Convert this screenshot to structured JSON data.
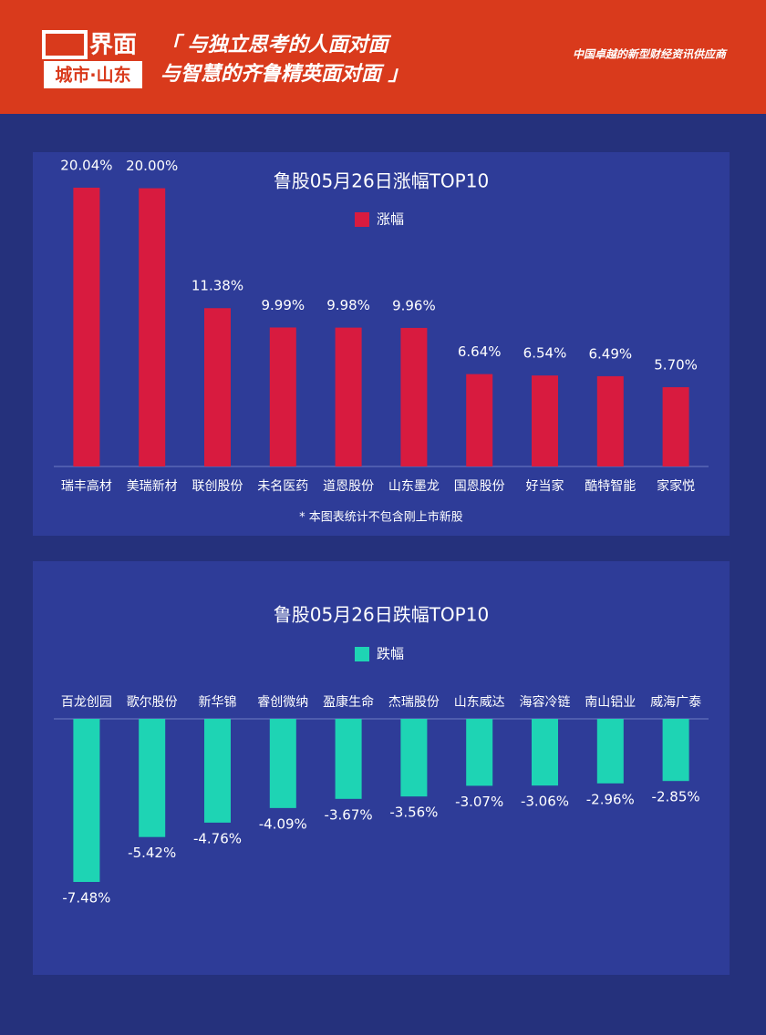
{
  "header": {
    "logo": "界面",
    "city": "城市·山东",
    "slogan_1": "「 与独立思考的人面对面",
    "slogan_2": "与智慧的齐鲁精英面对面 」",
    "tagline": "中国卓越的新型财经资讯供应商"
  },
  "chart_data": [
    {
      "type": "bar",
      "title": "鲁股05月26日涨幅TOP10",
      "note": "* 本图表统计不包含刚上市新股",
      "categories": [
        "瑞丰高材",
        "美瑞新材",
        "联创股份",
        "未名医药",
        "道恩股份",
        "山东墨龙",
        "国恩股份",
        "好当家",
        "酷特智能",
        "家家悦"
      ],
      "series": [
        {
          "name": "涨幅",
          "color": "#d81b3f",
          "values": [
            20.04,
            20.0,
            11.38,
            9.99,
            9.98,
            9.96,
            6.64,
            6.54,
            6.49,
            5.7
          ],
          "value_labels": [
            "20.04%",
            "20.00%",
            "11.38%",
            "9.99%",
            "9.98%",
            "9.96%",
            "6.64%",
            "6.54%",
            "6.49%",
            "5.70%"
          ]
        }
      ]
    },
    {
      "type": "bar",
      "title": "鲁股05月26日跌幅TOP10",
      "categories": [
        "百龙创园",
        "歌尔股份",
        "新华锦",
        "睿创微纳",
        "盈康生命",
        "杰瑞股份",
        "山东威达",
        "海容冷链",
        "南山铝业",
        "威海广泰"
      ],
      "series": [
        {
          "name": "跌幅",
          "color": "#1ed4b4",
          "values": [
            -7.48,
            -5.42,
            -4.76,
            -4.09,
            -3.67,
            -3.56,
            -3.07,
            -3.06,
            -2.96,
            -2.85
          ],
          "value_labels": [
            "-7.48%",
            "-5.42%",
            "-4.76%",
            "-4.09%",
            "-3.67%",
            "-3.56%",
            "-3.07%",
            "-3.06%",
            "-2.96%",
            "-2.85%"
          ]
        }
      ]
    }
  ]
}
